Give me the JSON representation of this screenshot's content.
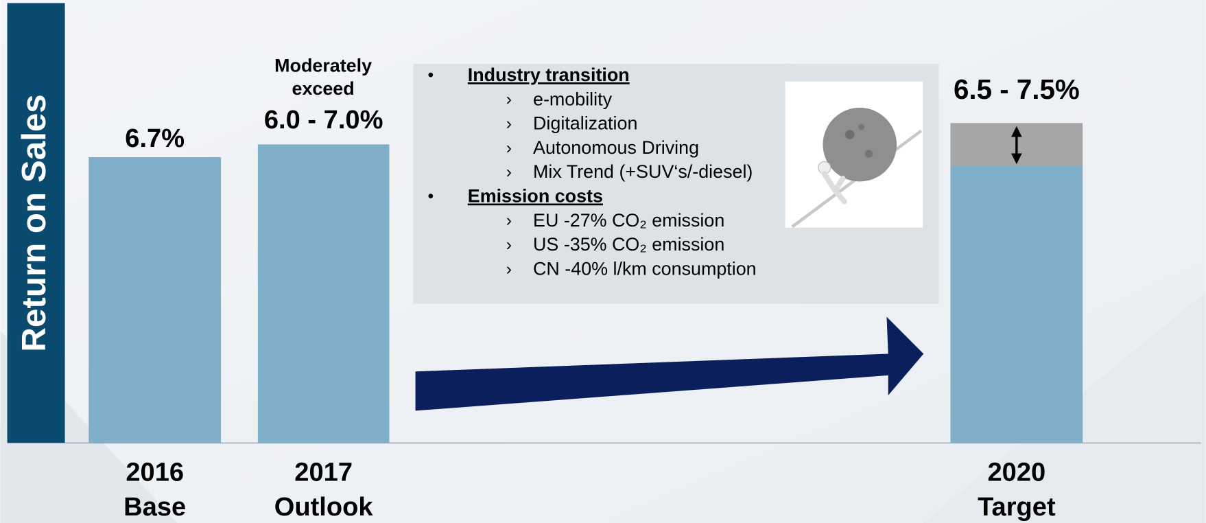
{
  "chart_data": {
    "type": "bar",
    "ylabel": "Return on Sales",
    "categories": [
      [
        "2016",
        "Base"
      ],
      [
        "2017",
        "Outlook"
      ],
      [
        "2020",
        "Target"
      ]
    ],
    "values": [
      6.7,
      null,
      null
    ],
    "ranges": [
      null,
      [
        6.0,
        7.0
      ],
      [
        6.5,
        7.5
      ]
    ],
    "value_labels": [
      "6.7%",
      "6.0 - 7.0%",
      "6.5 - 7.5%"
    ],
    "annotation": [
      "Moderately",
      "exceed"
    ],
    "color": "#7fafc8",
    "range_color": "#a6a6a6"
  },
  "textbox": [
    {
      "heading": "Industry transition",
      "items": [
        "e-mobility",
        "Digitalization",
        "Autonomous Driving",
        "Mix Trend (+SUV‘s/-diesel)"
      ]
    },
    {
      "heading": "Emission costs",
      "items": [
        "EU -27% CO₂ emission",
        "US -35% CO₂ emission",
        "CN -40% l/km consumption"
      ]
    }
  ]
}
